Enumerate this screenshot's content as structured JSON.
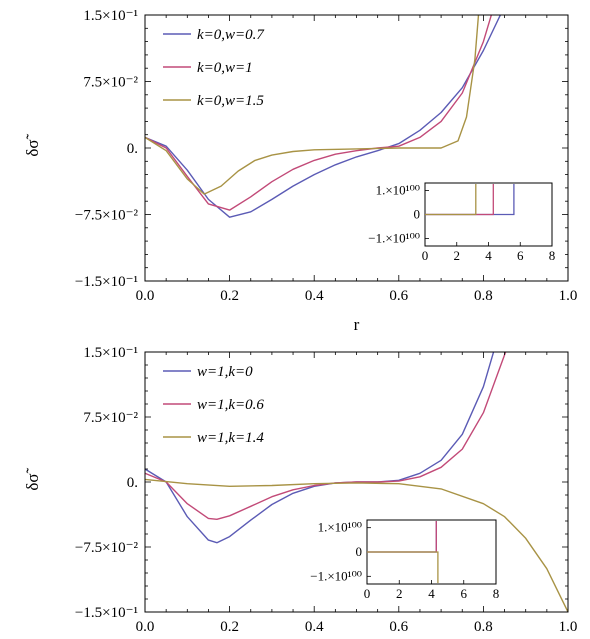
{
  "chart_data": [
    {
      "type": "line",
      "xlabel": "r",
      "ylabel": "δσ̃",
      "xlim": [
        0,
        1
      ],
      "ylim": [
        -0.15,
        0.15
      ],
      "x_ticks": [
        "0.0",
        "0.2",
        "0.4",
        "0.6",
        "0.8",
        "1.0"
      ],
      "y_ticks": [
        "1.5×10⁻¹",
        "7.5×10⁻²",
        "0.",
        "−7.5×10⁻²",
        "−1.5×10⁻¹"
      ],
      "legend_position": "top-left",
      "series": [
        {
          "name": "k=0,w=0.7",
          "color": "#5b5bb5",
          "x": [
            0,
            0.05,
            0.1,
            0.15,
            0.2,
            0.25,
            0.3,
            0.35,
            0.4,
            0.45,
            0.5,
            0.55,
            0.6,
            0.65,
            0.7,
            0.75,
            0.8,
            0.85
          ],
          "y": [
            0.012,
            0.002,
            -0.025,
            -0.058,
            -0.078,
            -0.072,
            -0.058,
            -0.043,
            -0.03,
            -0.019,
            -0.01,
            -0.003,
            0.005,
            0.02,
            0.04,
            0.068,
            0.11,
            0.16
          ]
        },
        {
          "name": "k=0,w=1",
          "color": "#c24a78",
          "x": [
            0,
            0.05,
            0.1,
            0.15,
            0.2,
            0.25,
            0.3,
            0.35,
            0.4,
            0.45,
            0.5,
            0.55,
            0.6,
            0.65,
            0.7,
            0.75,
            0.8,
            0.825
          ],
          "y": [
            0.012,
            0.0,
            -0.032,
            -0.063,
            -0.07,
            -0.055,
            -0.038,
            -0.024,
            -0.014,
            -0.007,
            -0.003,
            0.0,
            0.002,
            0.012,
            0.03,
            0.062,
            0.12,
            0.16
          ]
        },
        {
          "name": "k=0,w=1.5",
          "color": "#a89345",
          "x": [
            0,
            0.05,
            0.1,
            0.14,
            0.18,
            0.22,
            0.26,
            0.3,
            0.35,
            0.4,
            0.5,
            0.6,
            0.7,
            0.74,
            0.76,
            0.78,
            0.79
          ],
          "y": [
            0.012,
            -0.003,
            -0.035,
            -0.052,
            -0.043,
            -0.026,
            -0.014,
            -0.008,
            -0.004,
            -0.002,
            -0.001,
            0.0,
            0.0,
            0.008,
            0.035,
            0.1,
            0.16
          ]
        }
      ],
      "inset": {
        "xlim": [
          0,
          8
        ],
        "x_ticks": [
          "0",
          "2",
          "4",
          "6",
          "8"
        ],
        "y_ticks": [
          "1.×10¹⁰⁰",
          "0",
          "−1.×10¹⁰⁰"
        ],
        "series_blowup_x": {
          "k=0,w=0.7": 5.6,
          "k=0,w=1": 4.3,
          "k=0,w=1.5": 3.2
        }
      }
    },
    {
      "type": "line",
      "xlabel": "",
      "ylabel": "δσ̃",
      "xlim": [
        0,
        1
      ],
      "ylim": [
        -0.15,
        0.15
      ],
      "x_ticks": [
        "0.0",
        "0.2",
        "0.4",
        "0.6",
        "0.8",
        "1.0"
      ],
      "y_ticks": [
        "1.5×10⁻¹",
        "7.5×10⁻²",
        "0.",
        "−7.5×10⁻²",
        "−1.5×10⁻¹"
      ],
      "legend_position": "top-left",
      "series": [
        {
          "name": "w=1,k=0",
          "color": "#5b5bb5",
          "x": [
            0,
            0.05,
            0.1,
            0.15,
            0.17,
            0.2,
            0.25,
            0.3,
            0.35,
            0.4,
            0.45,
            0.5,
            0.55,
            0.6,
            0.65,
            0.7,
            0.75,
            0.8,
            0.83
          ],
          "y": [
            0.015,
            0.0,
            -0.04,
            -0.067,
            -0.07,
            -0.063,
            -0.044,
            -0.026,
            -0.013,
            -0.005,
            -0.001,
            0.0,
            0.0,
            0.002,
            0.01,
            0.025,
            0.055,
            0.11,
            0.16
          ]
        },
        {
          "name": "w=1,k=0.6",
          "color": "#c24a78",
          "x": [
            0,
            0.05,
            0.1,
            0.15,
            0.17,
            0.2,
            0.25,
            0.3,
            0.35,
            0.4,
            0.45,
            0.5,
            0.55,
            0.6,
            0.65,
            0.7,
            0.75,
            0.8,
            0.86
          ],
          "y": [
            0.01,
            0.0,
            -0.025,
            -0.042,
            -0.043,
            -0.039,
            -0.028,
            -0.017,
            -0.009,
            -0.004,
            -0.001,
            0.0,
            0.0,
            0.001,
            0.006,
            0.017,
            0.038,
            0.08,
            0.16
          ]
        },
        {
          "name": "w=1,k=1.4",
          "color": "#a89345",
          "x": [
            0,
            0.1,
            0.2,
            0.3,
            0.4,
            0.5,
            0.6,
            0.7,
            0.8,
            0.85,
            0.9,
            0.95,
            1.0
          ],
          "y": [
            0.003,
            -0.002,
            -0.005,
            -0.004,
            -0.002,
            -0.001,
            -0.002,
            -0.008,
            -0.025,
            -0.04,
            -0.065,
            -0.1,
            -0.15
          ]
        }
      ],
      "inset": {
        "xlim": [
          0,
          8
        ],
        "x_ticks": [
          "0",
          "2",
          "4",
          "6",
          "8"
        ],
        "y_ticks": [
          "1.×10¹⁰⁰",
          "0",
          "−1.×10¹⁰⁰"
        ],
        "series_blowup_x": {
          "w=1,k=0": 4.3,
          "w=1,k=0.6": 4.3,
          "w=1,k=1.4": 4.4
        }
      }
    }
  ]
}
